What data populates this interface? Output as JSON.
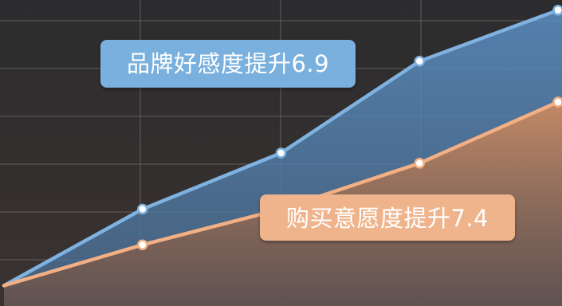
{
  "chart_data": {
    "type": "area",
    "x": [
      0,
      1,
      2,
      3,
      4
    ],
    "xlim": [
      0,
      4
    ],
    "ylim": [
      0,
      6
    ],
    "grid": true,
    "series": [
      {
        "values": [
          0.4,
          1.9,
          3.0,
          4.8,
          5.8
        ],
        "color": "#7fb2e0"
      },
      {
        "values": [
          0.4,
          1.2,
          1.9,
          2.8,
          4.0
        ],
        "color": "#f3b084"
      }
    ],
    "annotations": [
      {
        "text": "品牌好感度提升6.9",
        "color": "#7ab0dd",
        "series": 0
      },
      {
        "text": "购买意愿度提升7.4",
        "color": "#efb48c",
        "series": 1
      }
    ]
  },
  "colors": {
    "background_top": "#2c2c2e",
    "background_bottom": "#3a3230",
    "grid": "#6b6b6b"
  }
}
